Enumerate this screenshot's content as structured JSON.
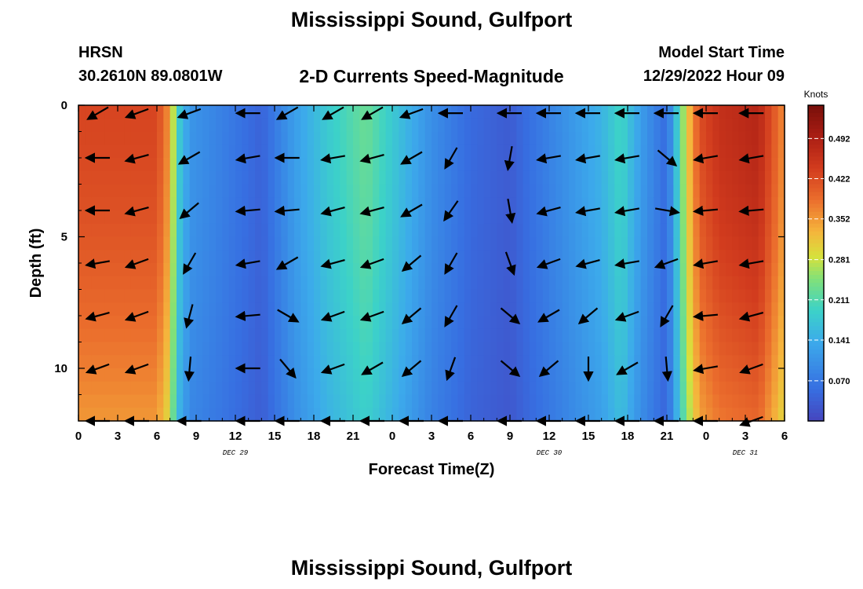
{
  "header": {
    "title": "Mississippi Sound, Gulfport",
    "station_code": "HRSN",
    "station_coords": "30.2610N  89.0801W",
    "subtitle": "2-D Currents Speed-Magnitude",
    "model_label": "Model Start Time",
    "model_time": "12/29/2022 Hour 09"
  },
  "footer": {
    "title": "Mississippi Sound, Gulfport"
  },
  "chart_data": {
    "type": "heatmap",
    "title": "2-D Currents Speed-Magnitude",
    "xlabel": "Forecast Time(Z)",
    "ylabel": "Depth (ft)",
    "x_unit": "hours since 12/29/2022 00Z",
    "x_range": [
      0,
      54
    ],
    "y_range": [
      0,
      12
    ],
    "y_inverted": true,
    "x_tick_labels": [
      "0",
      "3",
      "6",
      "9",
      "12",
      "15",
      "18",
      "21",
      "0",
      "3",
      "6",
      "9",
      "12",
      "15",
      "18",
      "21",
      "0",
      "3",
      "6"
    ],
    "y_tick_labels": [
      "0",
      "5",
      "10"
    ],
    "y_tick_values": [
      0,
      5,
      10
    ],
    "date_labels": [
      {
        "text": "DEC 29",
        "x": 12
      },
      {
        "text": "DEC 30",
        "x": 36
      },
      {
        "text": "DEC 31",
        "x": 51
      }
    ],
    "colorbar": {
      "label": "Knots",
      "range": [
        0,
        0.55
      ],
      "tick_labels": [
        "0.492",
        "0.422",
        "0.352",
        "0.281",
        "0.211",
        "0.141",
        "0.070"
      ],
      "tick_values": [
        0.492,
        0.422,
        0.352,
        0.281,
        0.211,
        0.141,
        0.07
      ]
    },
    "speed_profile_knots": {
      "times": [
        0,
        6,
        7,
        7.5,
        8.5,
        11,
        14,
        16.5,
        19,
        22,
        24,
        27,
        30,
        33,
        34,
        37,
        40,
        41.5,
        43,
        45,
        46.5,
        47.5,
        49,
        52,
        54
      ],
      "values": [
        0.43,
        0.43,
        0.35,
        0.2,
        0.11,
        0.08,
        0.04,
        0.12,
        0.18,
        0.23,
        0.18,
        0.1,
        0.05,
        0.03,
        0.05,
        0.1,
        0.15,
        0.2,
        0.12,
        0.05,
        0.3,
        0.42,
        0.46,
        0.48,
        0.36
      ]
    },
    "arrow_times": [
      1.5,
      4.5,
      8.5,
      13,
      16,
      19.5,
      22.5,
      25.5,
      28.5,
      33,
      36,
      39,
      42,
      45,
      48,
      51.5
    ],
    "arrow_depths": [
      0.3,
      2,
      4,
      6,
      8,
      10,
      12
    ],
    "arrow_directions_deg": [
      [
        30,
        20,
        20,
        0,
        30,
        30,
        30,
        20,
        0,
        0,
        0,
        0,
        0,
        0,
        0,
        0
      ],
      [
        0,
        15,
        30,
        10,
        0,
        10,
        15,
        30,
        60,
        80,
        10,
        10,
        10,
        140,
        10,
        10
      ],
      [
        0,
        15,
        40,
        5,
        5,
        15,
        15,
        30,
        55,
        100,
        15,
        10,
        10,
        170,
        5,
        5
      ],
      [
        10,
        20,
        60,
        10,
        30,
        15,
        20,
        40,
        60,
        110,
        20,
        15,
        10,
        20,
        10,
        10
      ],
      [
        15,
        20,
        75,
        5,
        150,
        20,
        20,
        40,
        60,
        140,
        30,
        40,
        20,
        60,
        5,
        15
      ],
      [
        20,
        20,
        85,
        0,
        130,
        20,
        30,
        40,
        70,
        140,
        40,
        90,
        30,
        95,
        10,
        20
      ],
      [
        0,
        0,
        0,
        0,
        0,
        0,
        0,
        0,
        0,
        0,
        0,
        0,
        0,
        0,
        0,
        20
      ]
    ]
  }
}
